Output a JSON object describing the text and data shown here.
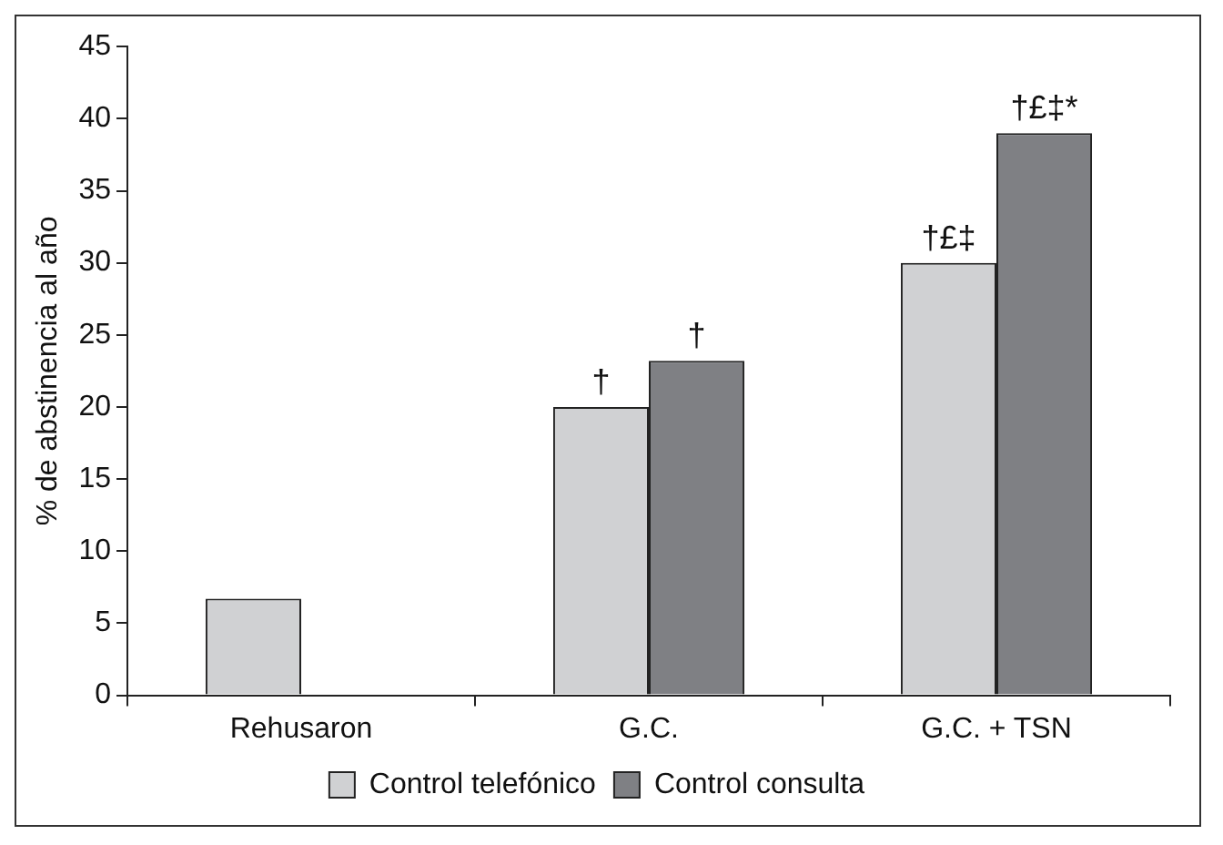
{
  "chart_data": {
    "type": "bar",
    "ylabel": "% de abstinencia al año",
    "categories": [
      "Rehusaron",
      "G.C.",
      "G.C. + TSN"
    ],
    "series": [
      {
        "name": "Control telefónico",
        "color": "#d0d1d3",
        "values": [
          6.7,
          20,
          30
        ]
      },
      {
        "name": "Control consulta",
        "color": "#7f8084",
        "values": [
          null,
          23.2,
          39
        ]
      }
    ],
    "ylim": [
      0,
      45
    ],
    "yticks": [
      0,
      5,
      10,
      15,
      20,
      25,
      30,
      35,
      40,
      45
    ],
    "grid": false,
    "legend": "bottom",
    "annotations": [
      {
        "text": "†",
        "x": "G.C.",
        "y": 20
      },
      {
        "text": "†",
        "x": "G.C.",
        "y": 23.2
      },
      {
        "text": "†£‡",
        "x": "G.C. + TSN",
        "y": 30
      },
      {
        "text": "†£‡*",
        "x": "G.C. + TSN",
        "y": 39
      }
    ]
  }
}
